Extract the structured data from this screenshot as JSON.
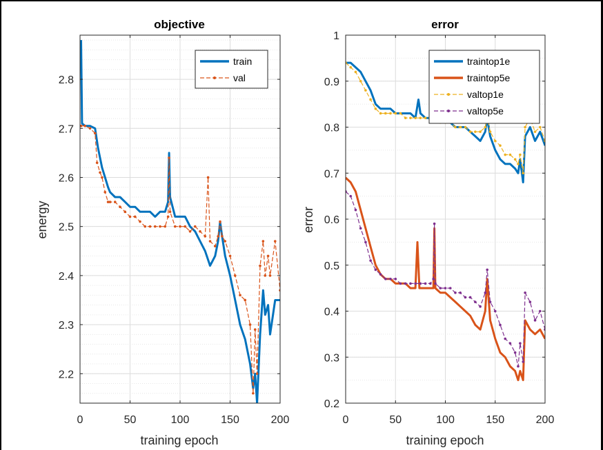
{
  "chart_data": [
    {
      "type": "line",
      "title": "objective",
      "xlabel": "training epoch",
      "ylabel": "energy",
      "xlim": [
        0,
        200
      ],
      "ylim": [
        2.14,
        2.89
      ],
      "xticks": [
        "0",
        "50",
        "100",
        "150",
        "200"
      ],
      "yticks": [
        "2.2",
        "2.3",
        "2.4",
        "2.5",
        "2.6",
        "2.7",
        "2.8"
      ],
      "grid": true,
      "legend_position": "top-right",
      "series": [
        {
          "name": "train",
          "color": "#0072BD",
          "style": "solid",
          "x": [
            1,
            2,
            5,
            10,
            15,
            18,
            20,
            22,
            25,
            28,
            30,
            35,
            40,
            45,
            50,
            55,
            60,
            65,
            70,
            75,
            80,
            85,
            88,
            89,
            90,
            95,
            100,
            105,
            110,
            115,
            120,
            125,
            130,
            135,
            138,
            140,
            142,
            145,
            150,
            155,
            160,
            165,
            170,
            173,
            175,
            177,
            180,
            183,
            185,
            188,
            190,
            195,
            200
          ],
          "y": [
            2.88,
            2.71,
            2.705,
            2.705,
            2.7,
            2.66,
            2.64,
            2.62,
            2.6,
            2.58,
            2.57,
            2.56,
            2.56,
            2.55,
            2.54,
            2.54,
            2.53,
            2.53,
            2.53,
            2.52,
            2.53,
            2.53,
            2.55,
            2.65,
            2.56,
            2.52,
            2.52,
            2.52,
            2.5,
            2.49,
            2.47,
            2.45,
            2.42,
            2.44,
            2.47,
            2.51,
            2.48,
            2.44,
            2.4,
            2.35,
            2.3,
            2.27,
            2.22,
            2.17,
            2.2,
            2.14,
            2.28,
            2.37,
            2.32,
            2.34,
            2.28,
            2.35,
            2.35
          ]
        },
        {
          "name": "val",
          "color": "#D95319",
          "style": "dash-dot-marker",
          "x": [
            1,
            5,
            10,
            15,
            17,
            20,
            22,
            25,
            28,
            30,
            35,
            40,
            45,
            50,
            55,
            60,
            65,
            70,
            75,
            80,
            85,
            88,
            89,
            90,
            95,
            100,
            105,
            110,
            115,
            120,
            125,
            128,
            130,
            135,
            138,
            140,
            142,
            145,
            150,
            155,
            160,
            165,
            170,
            173,
            175,
            177,
            180,
            183,
            185,
            188,
            190,
            195,
            200
          ],
          "y": [
            2.705,
            2.705,
            2.7,
            2.69,
            2.63,
            2.61,
            2.6,
            2.57,
            2.55,
            2.55,
            2.55,
            2.54,
            2.53,
            2.52,
            2.52,
            2.51,
            2.5,
            2.5,
            2.5,
            2.5,
            2.5,
            2.52,
            2.64,
            2.53,
            2.5,
            2.5,
            2.5,
            2.49,
            2.5,
            2.49,
            2.48,
            2.6,
            2.47,
            2.46,
            2.48,
            2.51,
            2.48,
            2.47,
            2.44,
            2.4,
            2.36,
            2.35,
            2.3,
            2.16,
            2.29,
            2.2,
            2.42,
            2.47,
            2.4,
            2.44,
            2.4,
            2.47,
            2.37
          ]
        }
      ]
    },
    {
      "type": "line",
      "title": "error",
      "xlabel": "training epoch",
      "ylabel": "error",
      "xlim": [
        0,
        200
      ],
      "ylim": [
        0.2,
        1
      ],
      "xticks": [
        "0",
        "50",
        "100",
        "150",
        "200"
      ],
      "yticks": [
        "0.2",
        "0.3",
        "0.4",
        "0.5",
        "0.6",
        "0.7",
        "0.8",
        "0.9",
        "1"
      ],
      "grid": true,
      "legend_position": "top-right",
      "series": [
        {
          "name": "traintop1e",
          "color": "#0072BD",
          "style": "solid",
          "x": [
            0,
            5,
            10,
            15,
            20,
            25,
            30,
            35,
            40,
            45,
            50,
            55,
            60,
            65,
            70,
            73,
            75,
            80,
            85,
            88,
            89,
            90,
            95,
            100,
            105,
            110,
            115,
            120,
            125,
            130,
            135,
            140,
            142,
            145,
            150,
            155,
            160,
            165,
            170,
            173,
            175,
            178,
            180,
            185,
            190,
            195,
            200
          ],
          "y": [
            0.94,
            0.94,
            0.93,
            0.92,
            0.9,
            0.88,
            0.85,
            0.84,
            0.84,
            0.84,
            0.83,
            0.83,
            0.83,
            0.83,
            0.82,
            0.86,
            0.83,
            0.82,
            0.82,
            0.83,
            0.88,
            0.82,
            0.82,
            0.81,
            0.81,
            0.8,
            0.8,
            0.8,
            0.79,
            0.78,
            0.77,
            0.79,
            0.82,
            0.78,
            0.75,
            0.73,
            0.72,
            0.72,
            0.71,
            0.7,
            0.73,
            0.68,
            0.78,
            0.8,
            0.77,
            0.79,
            0.76
          ]
        },
        {
          "name": "traintop5e",
          "color": "#D95319",
          "style": "solid",
          "x": [
            0,
            5,
            10,
            15,
            20,
            25,
            30,
            35,
            40,
            45,
            50,
            55,
            60,
            65,
            70,
            72,
            74,
            80,
            85,
            88,
            89,
            90,
            95,
            100,
            105,
            110,
            115,
            120,
            125,
            130,
            135,
            140,
            142,
            145,
            150,
            155,
            160,
            165,
            170,
            173,
            175,
            178,
            180,
            185,
            190,
            195,
            200
          ],
          "y": [
            0.69,
            0.68,
            0.66,
            0.62,
            0.58,
            0.54,
            0.5,
            0.48,
            0.47,
            0.47,
            0.46,
            0.46,
            0.46,
            0.45,
            0.45,
            0.55,
            0.45,
            0.45,
            0.45,
            0.45,
            0.58,
            0.45,
            0.44,
            0.44,
            0.43,
            0.42,
            0.41,
            0.4,
            0.39,
            0.37,
            0.36,
            0.4,
            0.47,
            0.38,
            0.34,
            0.31,
            0.3,
            0.28,
            0.27,
            0.25,
            0.27,
            0.25,
            0.38,
            0.36,
            0.35,
            0.36,
            0.34
          ]
        },
        {
          "name": "valtop1e",
          "color": "#EDB120",
          "style": "dash-dot-marker",
          "x": [
            0,
            5,
            10,
            15,
            20,
            25,
            30,
            35,
            40,
            45,
            50,
            55,
            60,
            65,
            70,
            75,
            80,
            85,
            88,
            89,
            90,
            95,
            100,
            105,
            110,
            115,
            120,
            125,
            130,
            135,
            140,
            142,
            145,
            150,
            155,
            160,
            165,
            170,
            173,
            175,
            178,
            180,
            185,
            190,
            195,
            200
          ],
          "y": [
            0.94,
            0.93,
            0.92,
            0.9,
            0.88,
            0.86,
            0.84,
            0.83,
            0.83,
            0.83,
            0.83,
            0.83,
            0.82,
            0.82,
            0.82,
            0.82,
            0.82,
            0.82,
            0.82,
            0.88,
            0.82,
            0.81,
            0.81,
            0.81,
            0.8,
            0.8,
            0.8,
            0.79,
            0.79,
            0.79,
            0.8,
            0.82,
            0.79,
            0.77,
            0.76,
            0.74,
            0.74,
            0.73,
            0.72,
            0.74,
            0.7,
            0.8,
            0.82,
            0.79,
            0.8,
            0.77
          ]
        },
        {
          "name": "valtop5e",
          "color": "#7E2F8E",
          "style": "dash-dot-marker",
          "x": [
            0,
            5,
            10,
            15,
            20,
            25,
            30,
            35,
            40,
            45,
            50,
            55,
            60,
            65,
            70,
            75,
            80,
            85,
            88,
            89,
            90,
            95,
            100,
            105,
            110,
            115,
            120,
            125,
            130,
            135,
            140,
            142,
            145,
            150,
            155,
            160,
            165,
            170,
            173,
            175,
            178,
            180,
            185,
            190,
            195,
            200
          ],
          "y": [
            0.66,
            0.65,
            0.62,
            0.58,
            0.55,
            0.51,
            0.49,
            0.48,
            0.47,
            0.47,
            0.47,
            0.46,
            0.46,
            0.46,
            0.46,
            0.46,
            0.46,
            0.46,
            0.47,
            0.59,
            0.46,
            0.45,
            0.45,
            0.45,
            0.44,
            0.44,
            0.43,
            0.43,
            0.42,
            0.41,
            0.44,
            0.49,
            0.42,
            0.4,
            0.37,
            0.34,
            0.33,
            0.31,
            0.28,
            0.33,
            0.29,
            0.44,
            0.42,
            0.38,
            0.4,
            0.36
          ]
        }
      ]
    }
  ]
}
